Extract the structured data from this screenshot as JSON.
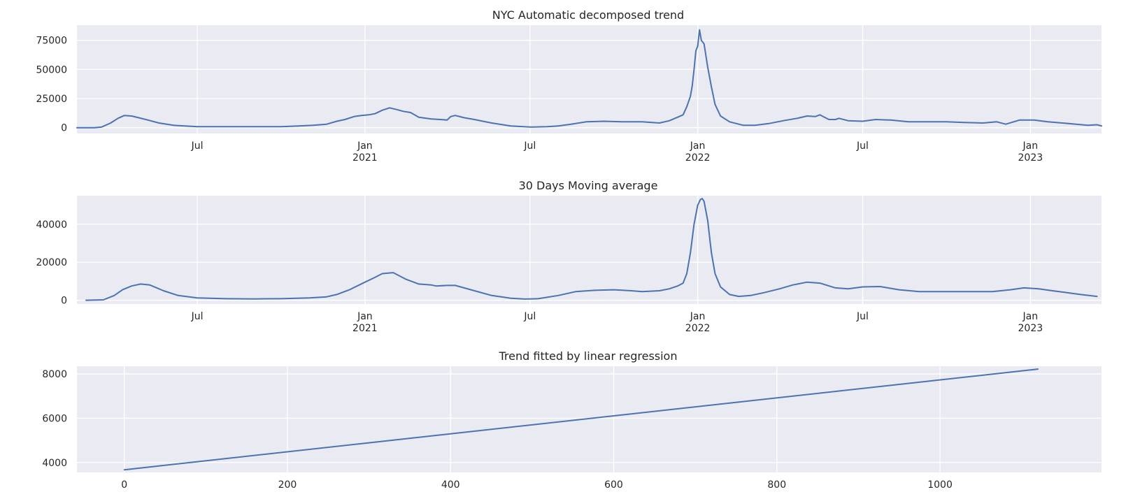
{
  "colors": {
    "background": "#eaeaf2",
    "grid": "#ffffff",
    "line": "#4c72b0",
    "text": "#262626"
  },
  "chart_data": [
    {
      "type": "line",
      "title": "NYC Automatic decomposed trend",
      "xlabel": "",
      "ylabel": "",
      "x_axis_type": "date",
      "xlim": [
        "2020-02-20",
        "2023-03-20"
      ],
      "ylim": [
        -5000,
        88000
      ],
      "grid": true,
      "yticks": [
        0,
        25000,
        50000,
        75000
      ],
      "ytick_labels": [
        "0",
        "25000",
        "50000",
        "75000"
      ],
      "xticks": [
        {
          "date": "2020-07-01",
          "label": "Jul",
          "sub": ""
        },
        {
          "date": "2021-01-01",
          "label": "Jan",
          "sub": "2021"
        },
        {
          "date": "2021-07-01",
          "label": "Jul",
          "sub": ""
        },
        {
          "date": "2022-01-01",
          "label": "Jan",
          "sub": "2022"
        },
        {
          "date": "2022-07-01",
          "label": "Jul",
          "sub": ""
        },
        {
          "date": "2023-01-01",
          "label": "Jan",
          "sub": "2023"
        }
      ],
      "series": [
        {
          "x": [
            "2020-02-20",
            "2020-03-10",
            "2020-03-18",
            "2020-03-28",
            "2020-04-05",
            "2020-04-12",
            "2020-04-20",
            "2020-04-28",
            "2020-05-08",
            "2020-05-20",
            "2020-06-05",
            "2020-07-01",
            "2020-08-01",
            "2020-09-01",
            "2020-10-01",
            "2020-10-20",
            "2020-11-05",
            "2020-11-20",
            "2020-12-01",
            "2020-12-10",
            "2020-12-20",
            "2020-12-28",
            "2021-01-05",
            "2021-01-12",
            "2021-01-20",
            "2021-01-28",
            "2021-02-05",
            "2021-02-12",
            "2021-02-20",
            "2021-03-01",
            "2021-03-15",
            "2021-03-25",
            "2021-04-01",
            "2021-04-05",
            "2021-04-10",
            "2021-04-20",
            "2021-05-01",
            "2021-05-20",
            "2021-06-10",
            "2021-07-01",
            "2021-07-20",
            "2021-08-01",
            "2021-08-15",
            "2021-09-01",
            "2021-09-20",
            "2021-10-10",
            "2021-11-01",
            "2021-11-20",
            "2021-12-01",
            "2021-12-10",
            "2021-12-16",
            "2021-12-20",
            "2021-12-24",
            "2021-12-26",
            "2021-12-28",
            "2021-12-30",
            "2022-01-01",
            "2022-01-03",
            "2022-01-05",
            "2022-01-08",
            "2022-01-12",
            "2022-01-16",
            "2022-01-20",
            "2022-01-26",
            "2022-02-05",
            "2022-02-20",
            "2022-03-05",
            "2022-03-20",
            "2022-04-05",
            "2022-04-20",
            "2022-05-01",
            "2022-05-10",
            "2022-05-15",
            "2022-05-20",
            "2022-05-25",
            "2022-06-01",
            "2022-06-05",
            "2022-06-15",
            "2022-07-01",
            "2022-07-15",
            "2022-08-01",
            "2022-08-20",
            "2022-09-10",
            "2022-10-01",
            "2022-10-20",
            "2022-11-10",
            "2022-11-25",
            "2022-12-05",
            "2022-12-20",
            "2023-01-05",
            "2023-01-20",
            "2023-02-05",
            "2023-02-20",
            "2023-03-05",
            "2023-03-15",
            "2023-03-20"
          ],
          "values": [
            0,
            0,
            500,
            4000,
            8000,
            10500,
            10000,
            8500,
            6500,
            4000,
            2000,
            800,
            900,
            800,
            900,
            1500,
            2000,
            3000,
            5500,
            7000,
            9500,
            10500,
            11000,
            12000,
            15000,
            17000,
            15500,
            14000,
            13000,
            9000,
            7500,
            7000,
            6500,
            9500,
            10500,
            8500,
            7000,
            4000,
            1500,
            500,
            800,
            1500,
            3000,
            5000,
            5500,
            5000,
            5000,
            4000,
            6000,
            9000,
            11000,
            18000,
            27000,
            36000,
            50000,
            66000,
            70000,
            84000,
            75000,
            72000,
            52000,
            35000,
            20000,
            10000,
            5000,
            2000,
            2000,
            3500,
            6000,
            8000,
            10000,
            9500,
            11000,
            9000,
            7000,
            7000,
            8000,
            6000,
            5500,
            7000,
            6500,
            5000,
            5000,
            5000,
            4500,
            4000,
            5000,
            3000,
            6500,
            6500,
            5000,
            4000,
            3000,
            2000,
            2500,
            1500
          ]
        }
      ]
    },
    {
      "type": "line",
      "title": "30 Days Moving average",
      "xlabel": "",
      "ylabel": "",
      "x_axis_type": "date",
      "xlim": [
        "2020-02-20",
        "2023-03-20"
      ],
      "ylim": [
        -2000,
        55000
      ],
      "grid": true,
      "yticks": [
        0,
        20000,
        40000
      ],
      "ytick_labels": [
        "0",
        "20000",
        "40000"
      ],
      "xticks": [
        {
          "date": "2020-07-01",
          "label": "Jul",
          "sub": ""
        },
        {
          "date": "2021-01-01",
          "label": "Jan",
          "sub": "2021"
        },
        {
          "date": "2021-07-01",
          "label": "Jul",
          "sub": ""
        },
        {
          "date": "2022-01-01",
          "label": "Jan",
          "sub": "2022"
        },
        {
          "date": "2022-07-01",
          "label": "Jul",
          "sub": ""
        },
        {
          "date": "2023-01-01",
          "label": "Jan",
          "sub": "2023"
        }
      ],
      "series": [
        {
          "x": [
            "2020-03-01",
            "2020-03-20",
            "2020-04-01",
            "2020-04-10",
            "2020-04-20",
            "2020-04-30",
            "2020-05-10",
            "2020-05-25",
            "2020-06-10",
            "2020-07-01",
            "2020-08-01",
            "2020-09-01",
            "2020-10-01",
            "2020-11-01",
            "2020-11-20",
            "2020-12-01",
            "2020-12-15",
            "2021-01-01",
            "2021-01-12",
            "2021-01-20",
            "2021-02-01",
            "2021-02-15",
            "2021-03-01",
            "2021-03-15",
            "2021-03-20",
            "2021-04-01",
            "2021-04-10",
            "2021-05-01",
            "2021-05-20",
            "2021-06-10",
            "2021-06-25",
            "2021-07-10",
            "2021-08-01",
            "2021-08-20",
            "2021-09-10",
            "2021-10-01",
            "2021-10-20",
            "2021-11-01",
            "2021-11-20",
            "2021-12-01",
            "2021-12-10",
            "2021-12-16",
            "2021-12-20",
            "2021-12-24",
            "2021-12-28",
            "2022-01-01",
            "2022-01-04",
            "2022-01-06",
            "2022-01-08",
            "2022-01-12",
            "2022-01-16",
            "2022-01-20",
            "2022-01-26",
            "2022-02-05",
            "2022-02-15",
            "2022-02-28",
            "2022-03-15",
            "2022-04-01",
            "2022-04-15",
            "2022-05-01",
            "2022-05-15",
            "2022-06-01",
            "2022-06-15",
            "2022-07-01",
            "2022-07-20",
            "2022-08-10",
            "2022-09-01",
            "2022-10-01",
            "2022-11-01",
            "2022-11-20",
            "2022-12-10",
            "2022-12-25",
            "2023-01-10",
            "2023-01-25",
            "2023-02-10",
            "2023-02-25",
            "2023-03-15"
          ],
          "values": [
            0,
            200,
            2500,
            5500,
            7500,
            8500,
            8000,
            5000,
            2500,
            1200,
            800,
            700,
            800,
            1200,
            1800,
            3000,
            5500,
            9500,
            12000,
            14000,
            14500,
            11000,
            8500,
            8000,
            7500,
            7800,
            7800,
            5000,
            2500,
            1000,
            600,
            800,
            2500,
            4500,
            5200,
            5500,
            5000,
            4500,
            5000,
            6000,
            7500,
            9000,
            14000,
            25000,
            40000,
            50000,
            53000,
            53500,
            52000,
            42000,
            25000,
            14000,
            7000,
            3000,
            2000,
            2500,
            4000,
            6000,
            8000,
            9500,
            9000,
            6500,
            6000,
            7000,
            7200,
            5500,
            4500,
            4500,
            4500,
            4500,
            5500,
            6500,
            6000,
            5000,
            4000,
            3000,
            2000
          ]
        }
      ]
    },
    {
      "type": "line",
      "title": "Trend fitted by linear regression",
      "xlabel": "",
      "ylabel": "",
      "x_axis_type": "linear",
      "xlim": [
        -58,
        1198
      ],
      "ylim": [
        3550,
        8350
      ],
      "grid": true,
      "yticks": [
        4000,
        6000,
        8000
      ],
      "ytick_labels": [
        "4000",
        "6000",
        "8000"
      ],
      "xticks": [
        {
          "value": 0,
          "label": "0"
        },
        {
          "value": 200,
          "label": "200"
        },
        {
          "value": 400,
          "label": "400"
        },
        {
          "value": 600,
          "label": "600"
        },
        {
          "value": 800,
          "label": "800"
        },
        {
          "value": 1000,
          "label": "1000"
        }
      ],
      "series": [
        {
          "x": [
            0,
            1120
          ],
          "values": [
            3670,
            8220
          ]
        }
      ]
    }
  ]
}
